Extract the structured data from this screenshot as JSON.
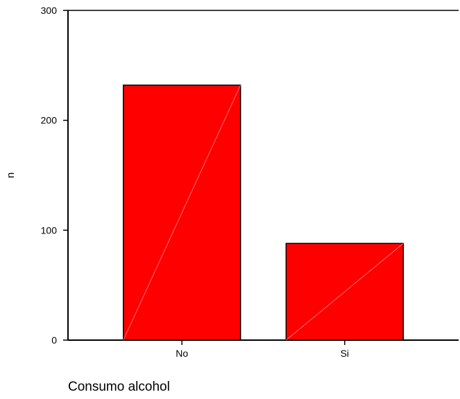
{
  "chart_data": {
    "type": "bar",
    "title": "",
    "xlabel": "Consumo alcohol",
    "ylabel": "n",
    "categories": [
      "No",
      "Si"
    ],
    "values": [
      232,
      88
    ],
    "ylim": [
      0,
      300
    ],
    "yticks": [
      0,
      100,
      200,
      300
    ],
    "grid": false,
    "bar_color": "#ff0000",
    "bar_edge_color": "#000000"
  }
}
